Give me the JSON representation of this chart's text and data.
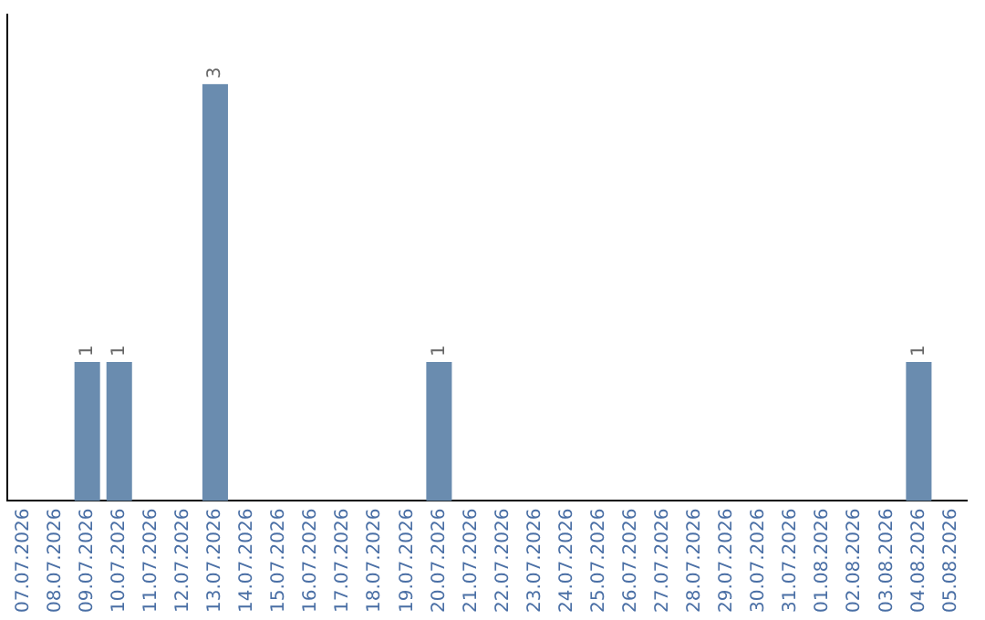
{
  "chart_data": {
    "type": "bar",
    "categories": [
      "07.07.2026",
      "08.07.2026",
      "09.07.2026",
      "10.07.2026",
      "11.07.2026",
      "12.07.2026",
      "13.07.2026",
      "14.07.2026",
      "15.07.2026",
      "16.07.2026",
      "17.07.2026",
      "18.07.2026",
      "19.07.2026",
      "20.07.2026",
      "21.07.2026",
      "22.07.2026",
      "23.07.2026",
      "24.07.2026",
      "25.07.2026",
      "26.07.2026",
      "27.07.2026",
      "28.07.2026",
      "29.07.2026",
      "30.07.2026",
      "31.07.2026",
      "01.08.2026",
      "02.08.2026",
      "03.08.2026",
      "04.08.2026",
      "05.08.2026"
    ],
    "values": [
      0,
      0,
      1,
      1,
      0,
      0,
      3,
      0,
      0,
      0,
      0,
      0,
      0,
      1,
      0,
      0,
      0,
      0,
      0,
      0,
      0,
      0,
      0,
      0,
      0,
      0,
      0,
      0,
      1,
      0
    ],
    "value_labels": [
      null,
      null,
      "1",
      "1",
      null,
      null,
      "3",
      null,
      null,
      null,
      null,
      null,
      null,
      "1",
      null,
      null,
      null,
      null,
      null,
      null,
      null,
      null,
      null,
      null,
      null,
      null,
      null,
      null,
      "1",
      null
    ],
    "color": "#6a8caf",
    "grid": false,
    "legend": false,
    "tick_labels": "x"
  }
}
